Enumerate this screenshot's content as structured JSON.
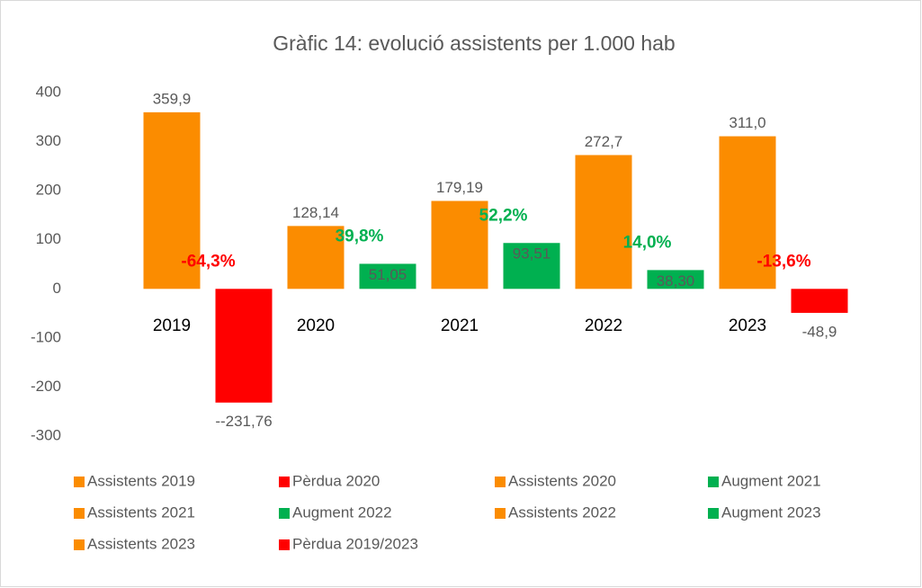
{
  "chart_data": {
    "type": "bar",
    "title": "Gràfic 14: evolució assistents per 1.000 hab",
    "categories": [
      "2019",
      null,
      "2020",
      null,
      "2021",
      null,
      "2022",
      null,
      "2023",
      null
    ],
    "series": [
      {
        "name": "Assistents 2019",
        "color": "#fb8c00",
        "values": [
          359.9,
          null,
          null,
          null,
          null,
          null,
          null,
          null,
          null,
          null
        ],
        "value_labels": [
          "359,9",
          null,
          null,
          null,
          null,
          null,
          null,
          null,
          null,
          null
        ]
      },
      {
        "name": "Pèrdua 2020",
        "color": "#ff0000",
        "annotation": "-64,3%",
        "values": [
          null,
          -231.76,
          null,
          null,
          null,
          null,
          null,
          null,
          null,
          null
        ],
        "value_labels": [
          null,
          "--231,76",
          null,
          null,
          null,
          null,
          null,
          null,
          null,
          null
        ]
      },
      {
        "name": "Assistents 2020",
        "color": "#fb8c00",
        "values": [
          null,
          null,
          128.14,
          null,
          null,
          null,
          null,
          null,
          null,
          null
        ],
        "value_labels": [
          null,
          null,
          "128,14",
          null,
          null,
          null,
          null,
          null,
          null,
          null
        ]
      },
      {
        "name": "Augment 2021",
        "color": "#00b050",
        "annotation": "39,8%",
        "values": [
          null,
          null,
          null,
          51.05,
          null,
          null,
          null,
          null,
          null,
          null
        ],
        "value_labels": [
          null,
          null,
          null,
          "51,05",
          null,
          null,
          null,
          null,
          null,
          null
        ]
      },
      {
        "name": "Assistents 2021",
        "color": "#fb8c00",
        "values": [
          null,
          null,
          null,
          null,
          179.19,
          null,
          null,
          null,
          null,
          null
        ],
        "value_labels": [
          null,
          null,
          null,
          null,
          "179,19",
          null,
          null,
          null,
          null,
          null
        ]
      },
      {
        "name": "Augment 2022",
        "color": "#00b050",
        "annotation": "52,2%",
        "values": [
          null,
          null,
          null,
          null,
          null,
          93.51,
          null,
          null,
          null,
          null
        ],
        "value_labels": [
          null,
          null,
          null,
          null,
          null,
          "93,51",
          null,
          null,
          null,
          null
        ]
      },
      {
        "name": "Assistents 2022",
        "color": "#fb8c00",
        "values": [
          null,
          null,
          null,
          null,
          null,
          null,
          272.7,
          null,
          null,
          null
        ],
        "value_labels": [
          null,
          null,
          null,
          null,
          null,
          null,
          "272,7",
          null,
          null,
          null
        ]
      },
      {
        "name": "Augment 2023",
        "color": "#00b050",
        "annotation": "14,0%",
        "values": [
          null,
          null,
          null,
          null,
          null,
          null,
          null,
          38.3,
          null,
          null
        ],
        "value_labels": [
          null,
          null,
          null,
          null,
          null,
          null,
          null,
          "38,30",
          null,
          null
        ]
      },
      {
        "name": "Assistents 2023",
        "color": "#fb8c00",
        "values": [
          null,
          null,
          null,
          null,
          null,
          null,
          null,
          null,
          311.0,
          null
        ],
        "value_labels": [
          null,
          null,
          null,
          null,
          null,
          null,
          null,
          null,
          "311,0",
          null
        ]
      },
      {
        "name": "Pèrdua 2019/2023",
        "color": "#ff0000",
        "annotation": "-13,6%",
        "values": [
          null,
          null,
          null,
          null,
          null,
          null,
          null,
          null,
          null,
          -48.9
        ],
        "value_labels": [
          null,
          null,
          null,
          null,
          null,
          null,
          null,
          null,
          null,
          "-48,9"
        ]
      }
    ],
    "ylim": [
      -300,
      400
    ],
    "yticks": [
      -300,
      -200,
      -100,
      0,
      100,
      200,
      300,
      400
    ],
    "grid": false
  }
}
